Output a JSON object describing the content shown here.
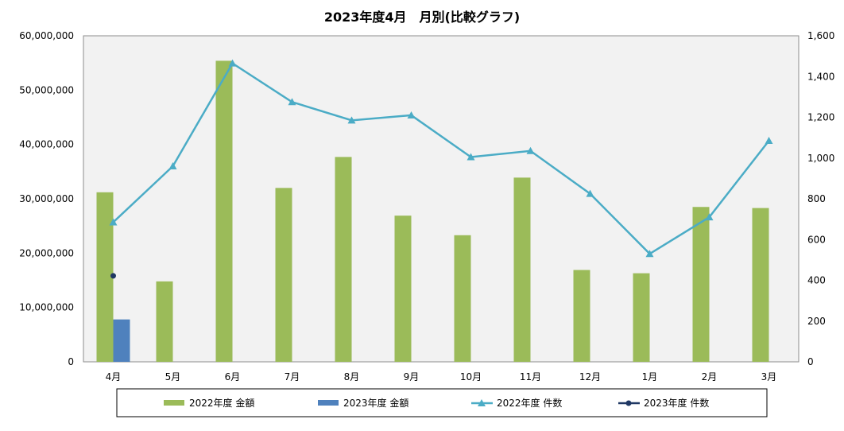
{
  "chart_data": {
    "type": "bar",
    "title": "2023年度4月　月別(比較グラフ)",
    "categories": [
      "4月",
      "5月",
      "6月",
      "7月",
      "8月",
      "9月",
      "10月",
      "11月",
      "12月",
      "1月",
      "2月",
      "3月"
    ],
    "left_axis": {
      "ylim": [
        0,
        60000000
      ],
      "ticks": [
        "0",
        "10,000,000",
        "20,000,000",
        "30,000,000",
        "40,000,000",
        "50,000,000",
        "60,000,000"
      ]
    },
    "right_axis": {
      "ylim": [
        0,
        1600
      ],
      "ticks": [
        "0",
        "200",
        "400",
        "600",
        "800",
        "1,000",
        "1,200",
        "1,400",
        "1,600"
      ]
    },
    "series": [
      {
        "name": "2022年度 金額",
        "kind": "bar",
        "axis": "left",
        "color": "#9bbb59",
        "values": [
          31200000,
          14800000,
          55400000,
          32000000,
          37700000,
          26900000,
          23300000,
          33900000,
          16900000,
          16300000,
          28500000,
          28300000
        ]
      },
      {
        "name": "2023年度 金額",
        "kind": "bar",
        "axis": "left",
        "color": "#4f81bd",
        "values": [
          7800000,
          null,
          null,
          null,
          null,
          null,
          null,
          null,
          null,
          null,
          null,
          null
        ]
      },
      {
        "name": "2022年度 件数",
        "kind": "line",
        "axis": "right",
        "color": "#4bacc6",
        "marker": "triangle",
        "values": [
          685,
          960,
          1465,
          1275,
          1185,
          1210,
          1005,
          1035,
          825,
          530,
          710,
          1085
        ]
      },
      {
        "name": "2023年度 件数",
        "kind": "line",
        "axis": "right",
        "color": "#1f3864",
        "marker": "circle",
        "values": [
          422,
          null,
          null,
          null,
          null,
          null,
          null,
          null,
          null,
          null,
          null,
          null
        ]
      }
    ],
    "legend": "bottom",
    "grid": false
  }
}
